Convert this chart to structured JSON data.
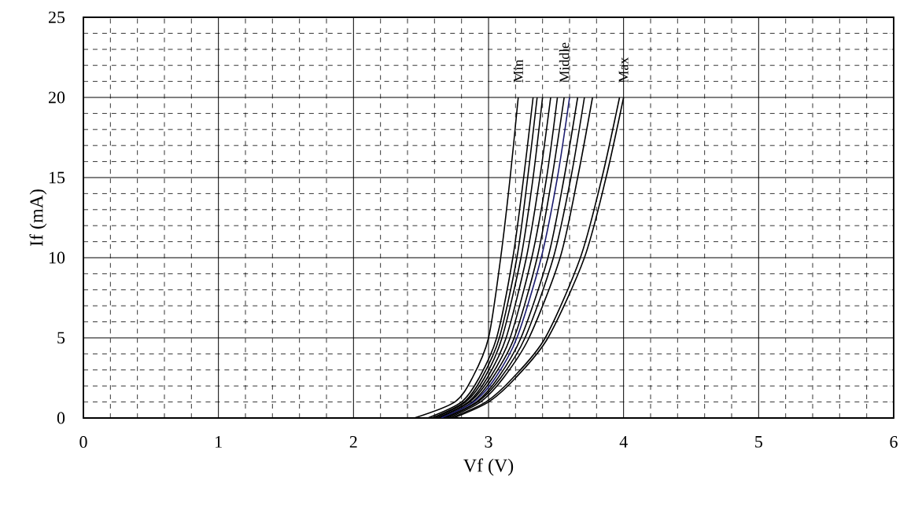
{
  "chart_data": {
    "type": "line",
    "xlabel": "Vf (V)",
    "ylabel": "If (mA)",
    "xlim": [
      0,
      6
    ],
    "ylim": [
      0,
      25
    ],
    "xticks": [
      0,
      1,
      2,
      3,
      4,
      5,
      6
    ],
    "yticks": [
      0,
      5,
      10,
      15,
      20,
      25
    ],
    "grid": true,
    "marker": "none",
    "line_style": "solid",
    "series": [
      {
        "color": "#000000",
        "x": [
          2.45,
          2.75,
          2.88,
          3.0,
          3.09,
          3.16,
          3.22
        ],
        "values": [
          0,
          1,
          2.5,
          5,
          10,
          15,
          20
        ]
      },
      {
        "color": "#000000",
        "x": [
          2.55,
          2.8,
          2.93,
          3.06,
          3.18,
          3.26,
          3.33
        ],
        "values": [
          0,
          1,
          2.5,
          5,
          10,
          15,
          20
        ]
      },
      {
        "color": "#000000",
        "x": [
          2.58,
          2.82,
          2.95,
          3.08,
          3.21,
          3.29,
          3.36
        ],
        "values": [
          0,
          1,
          2.5,
          5,
          10,
          15,
          20
        ]
      },
      {
        "color": "#000000",
        "x": [
          2.6,
          2.83,
          2.97,
          3.1,
          3.24,
          3.33,
          3.4
        ],
        "values": [
          0,
          1,
          2.5,
          5,
          10,
          15,
          20
        ]
      },
      {
        "color": "#000000",
        "x": [
          2.62,
          2.85,
          2.99,
          3.13,
          3.28,
          3.38,
          3.46
        ],
        "values": [
          0,
          1,
          2.5,
          5,
          10,
          15,
          20
        ]
      },
      {
        "color": "#000000",
        "x": [
          2.63,
          2.86,
          3.01,
          3.16,
          3.32,
          3.43,
          3.51
        ],
        "values": [
          0,
          1,
          2.5,
          5,
          10,
          15,
          20
        ]
      },
      {
        "color": "#000000",
        "x": [
          2.65,
          2.88,
          3.03,
          3.19,
          3.36,
          3.47,
          3.56
        ],
        "values": [
          0,
          1,
          2.5,
          5,
          10,
          15,
          20
        ]
      },
      {
        "color": "#1a1a6e",
        "x": [
          2.65,
          2.89,
          3.05,
          3.21,
          3.39,
          3.51,
          3.6
        ],
        "values": [
          0,
          1,
          2.5,
          5,
          10,
          15,
          20
        ]
      },
      {
        "color": "#000000",
        "x": [
          2.67,
          2.91,
          3.07,
          3.24,
          3.44,
          3.56,
          3.66
        ],
        "values": [
          0,
          1,
          2.5,
          5,
          10,
          15,
          20
        ]
      },
      {
        "color": "#000000",
        "x": [
          2.68,
          2.92,
          3.09,
          3.27,
          3.48,
          3.61,
          3.71
        ],
        "values": [
          0,
          1,
          2.5,
          5,
          10,
          15,
          20
        ]
      },
      {
        "color": "#000000",
        "x": [
          2.7,
          2.94,
          3.11,
          3.3,
          3.53,
          3.66,
          3.77
        ],
        "values": [
          0,
          1,
          2.5,
          5,
          10,
          15,
          20
        ]
      },
      {
        "color": "#000000",
        "x": [
          2.72,
          2.98,
          3.18,
          3.42,
          3.68,
          3.84,
          3.97
        ],
        "values": [
          0,
          1,
          2.5,
          5,
          10,
          15,
          20
        ]
      },
      {
        "color": "#000000",
        "x": [
          2.74,
          3.0,
          3.2,
          3.44,
          3.71,
          3.87,
          4.0
        ],
        "values": [
          0,
          1,
          2.5,
          5,
          10,
          15,
          20
        ]
      }
    ],
    "annotations": [
      "Min",
      "Middle",
      "Max"
    ]
  }
}
